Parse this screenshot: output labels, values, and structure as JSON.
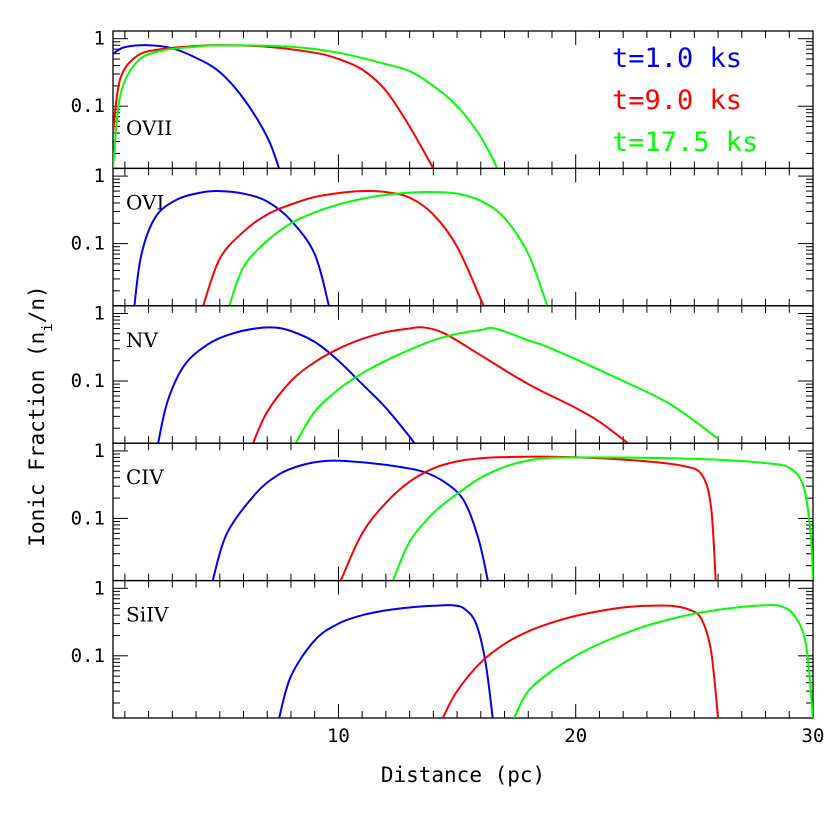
{
  "chart_data": {
    "type": "line",
    "xlabel": "Distance (pc)",
    "ylabel": "Ionic Fraction (n_i/n)",
    "xlim": [
      0.5,
      30
    ],
    "x_ticks": [
      10,
      20,
      30
    ],
    "y_scale": "log",
    "ylim": [
      0.012,
      1.3
    ],
    "y_ticks": [
      {
        "value": 1,
        "label": "1"
      },
      {
        "value": 0.1,
        "label": "0.1"
      }
    ],
    "legend": {
      "placement": "top-right",
      "entries": [
        {
          "label": "t=1.0 ks",
          "color": "#0000ff"
        },
        {
          "label": "t=9.0 ks",
          "color": "#ff0000"
        },
        {
          "label": "t=17.5 ks",
          "color": "#00ff00"
        }
      ]
    },
    "panels": [
      {
        "label": "OVII",
        "series": [
          {
            "name": "t=1.0 ks",
            "color": "#0000ff",
            "points": [
              [
                0.5,
                0.6
              ],
              [
                1,
                0.75
              ],
              [
                2,
                0.8
              ],
              [
                3,
                0.72
              ],
              [
                4,
                0.52
              ],
              [
                5,
                0.32
              ],
              [
                6,
                0.13
              ],
              [
                7,
                0.035
              ],
              [
                7.5,
                0.012
              ]
            ]
          },
          {
            "name": "t=9.0 ks",
            "color": "#ff0000",
            "points": [
              [
                0.5,
                0.04
              ],
              [
                0.8,
                0.25
              ],
              [
                1.5,
                0.55
              ],
              [
                2.5,
                0.7
              ],
              [
                4,
                0.78
              ],
              [
                5,
                0.8
              ],
              [
                7,
                0.76
              ],
              [
                9,
                0.62
              ],
              [
                10,
                0.5
              ],
              [
                11,
                0.35
              ],
              [
                12,
                0.17
              ],
              [
                13,
                0.05
              ],
              [
                14,
                0.012
              ]
            ]
          },
          {
            "name": "t=17.5 ks",
            "color": "#00ff00",
            "points": [
              [
                0.5,
                0.012
              ],
              [
                0.8,
                0.14
              ],
              [
                1.5,
                0.45
              ],
              [
                2.5,
                0.66
              ],
              [
                4,
                0.76
              ],
              [
                5,
                0.8
              ],
              [
                8,
                0.76
              ],
              [
                10,
                0.62
              ],
              [
                12,
                0.42
              ],
              [
                13,
                0.33
              ],
              [
                14,
                0.2
              ],
              [
                15,
                0.1
              ],
              [
                16,
                0.035
              ],
              [
                16.7,
                0.012
              ]
            ]
          }
        ]
      },
      {
        "label": "OVI",
        "series": [
          {
            "name": "t=1.0 ks",
            "color": "#0000ff",
            "points": [
              [
                1.4,
                0.012
              ],
              [
                1.7,
                0.07
              ],
              [
                2.3,
                0.25
              ],
              [
                3.2,
                0.45
              ],
              [
                4.2,
                0.57
              ],
              [
                5,
                0.6
              ],
              [
                6,
                0.55
              ],
              [
                7,
                0.42
              ],
              [
                8,
                0.22
              ],
              [
                9,
                0.07
              ],
              [
                9.6,
                0.012
              ]
            ]
          },
          {
            "name": "t=9.0 ks",
            "color": "#ff0000",
            "points": [
              [
                4.3,
                0.012
              ],
              [
                5,
                0.06
              ],
              [
                6,
                0.15
              ],
              [
                7,
                0.27
              ],
              [
                8,
                0.38
              ],
              [
                9,
                0.49
              ],
              [
                10,
                0.56
              ],
              [
                11,
                0.6
              ],
              [
                12,
                0.58
              ],
              [
                13,
                0.48
              ],
              [
                14,
                0.27
              ],
              [
                15,
                0.09
              ],
              [
                16,
                0.015
              ],
              [
                16.1,
                0.012
              ]
            ]
          },
          {
            "name": "t=17.5 ks",
            "color": "#00ff00",
            "points": [
              [
                5.4,
                0.012
              ],
              [
                6,
                0.045
              ],
              [
                7,
                0.11
              ],
              [
                8,
                0.2
              ],
              [
                9,
                0.29
              ],
              [
                10,
                0.38
              ],
              [
                11,
                0.46
              ],
              [
                12,
                0.53
              ],
              [
                13,
                0.57
              ],
              [
                14,
                0.58
              ],
              [
                15,
                0.55
              ],
              [
                16,
                0.43
              ],
              [
                17,
                0.24
              ],
              [
                18,
                0.07
              ],
              [
                18.8,
                0.012
              ]
            ]
          }
        ]
      },
      {
        "label": "NV",
        "series": [
          {
            "name": "t=1.0 ks",
            "color": "#0000ff",
            "points": [
              [
                2.4,
                0.012
              ],
              [
                2.8,
                0.05
              ],
              [
                3.5,
                0.17
              ],
              [
                4.5,
                0.35
              ],
              [
                5.5,
                0.5
              ],
              [
                6.5,
                0.6
              ],
              [
                7.3,
                0.62
              ],
              [
                8,
                0.55
              ],
              [
                9,
                0.38
              ],
              [
                10,
                0.2
              ],
              [
                11,
                0.09
              ],
              [
                12,
                0.04
              ],
              [
                13,
                0.015
              ],
              [
                13.2,
                0.012
              ]
            ]
          },
          {
            "name": "t=9.0 ks",
            "color": "#ff0000",
            "points": [
              [
                6.4,
                0.012
              ],
              [
                7,
                0.035
              ],
              [
                8,
                0.1
              ],
              [
                9,
                0.19
              ],
              [
                10,
                0.3
              ],
              [
                11,
                0.42
              ],
              [
                12,
                0.53
              ],
              [
                13,
                0.6
              ],
              [
                13.6,
                0.62
              ],
              [
                14.5,
                0.5
              ],
              [
                16,
                0.24
              ],
              [
                18,
                0.09
              ],
              [
                20,
                0.04
              ],
              [
                21,
                0.025
              ],
              [
                22.2,
                0.012
              ]
            ]
          },
          {
            "name": "t=17.5 ks",
            "color": "#00ff00",
            "points": [
              [
                8.2,
                0.012
              ],
              [
                9,
                0.035
              ],
              [
                10,
                0.075
              ],
              [
                11,
                0.13
              ],
              [
                12,
                0.2
              ],
              [
                13,
                0.29
              ],
              [
                14,
                0.4
              ],
              [
                15,
                0.5
              ],
              [
                16,
                0.57
              ],
              [
                16.6,
                0.6
              ],
              [
                18,
                0.4
              ],
              [
                19,
                0.3
              ],
              [
                22,
                0.1
              ],
              [
                24,
                0.045
              ],
              [
                26,
                0.014
              ]
            ]
          }
        ]
      },
      {
        "label": "CIV",
        "series": [
          {
            "name": "t=1.0 ks",
            "color": "#0000ff",
            "points": [
              [
                4.7,
                0.012
              ],
              [
                5.3,
                0.06
              ],
              [
                6.5,
                0.23
              ],
              [
                7.5,
                0.45
              ],
              [
                8.5,
                0.62
              ],
              [
                9.5,
                0.71
              ],
              [
                10.5,
                0.7
              ],
              [
                12,
                0.62
              ],
              [
                13.5,
                0.5
              ],
              [
                14.5,
                0.34
              ],
              [
                15.3,
                0.18
              ],
              [
                15.9,
                0.05
              ],
              [
                16.3,
                0.012
              ]
            ]
          },
          {
            "name": "t=9.0 ks",
            "color": "#ff0000",
            "points": [
              [
                10.1,
                0.012
              ],
              [
                11,
                0.06
              ],
              [
                12,
                0.17
              ],
              [
                13,
                0.35
              ],
              [
                14,
                0.55
              ],
              [
                15,
                0.7
              ],
              [
                16,
                0.78
              ],
              [
                17,
                0.81
              ],
              [
                19,
                0.82
              ],
              [
                21,
                0.78
              ],
              [
                23,
                0.7
              ],
              [
                24.5,
                0.6
              ],
              [
                25.3,
                0.45
              ],
              [
                25.7,
                0.15
              ],
              [
                25.9,
                0.012
              ]
            ]
          },
          {
            "name": "t=17.5 ks",
            "color": "#00ff00",
            "points": [
              [
                12.3,
                0.012
              ],
              [
                13,
                0.045
              ],
              [
                14,
                0.12
              ],
              [
                15,
                0.23
              ],
              [
                16,
                0.4
              ],
              [
                17,
                0.58
              ],
              [
                18,
                0.72
              ],
              [
                19,
                0.79
              ],
              [
                21,
                0.8
              ],
              [
                24,
                0.78
              ],
              [
                26,
                0.74
              ],
              [
                28,
                0.66
              ],
              [
                29,
                0.56
              ],
              [
                29.6,
                0.3
              ],
              [
                29.9,
                0.06
              ],
              [
                30,
                0.012
              ]
            ]
          }
        ]
      },
      {
        "label": "SiIV",
        "series": [
          {
            "name": "t=1.0 ks",
            "color": "#0000ff",
            "points": [
              [
                7.5,
                0.012
              ],
              [
                8,
                0.05
              ],
              [
                9,
                0.17
              ],
              [
                10,
                0.3
              ],
              [
                11,
                0.4
              ],
              [
                12,
                0.47
              ],
              [
                13,
                0.52
              ],
              [
                14,
                0.55
              ],
              [
                14.8,
                0.56
              ],
              [
                15.3,
                0.5
              ],
              [
                15.8,
                0.3
              ],
              [
                16.2,
                0.08
              ],
              [
                16.5,
                0.012
              ]
            ]
          },
          {
            "name": "t=9.0 ks",
            "color": "#ff0000",
            "points": [
              [
                14.4,
                0.012
              ],
              [
                15,
                0.03
              ],
              [
                16,
                0.08
              ],
              [
                17,
                0.15
              ],
              [
                18,
                0.23
              ],
              [
                19,
                0.31
              ],
              [
                20,
                0.39
              ],
              [
                21,
                0.46
              ],
              [
                22,
                0.52
              ],
              [
                23,
                0.55
              ],
              [
                24,
                0.55
              ],
              [
                24.8,
                0.48
              ],
              [
                25.3,
                0.35
              ],
              [
                25.7,
                0.12
              ],
              [
                26,
                0.012
              ]
            ]
          },
          {
            "name": "t=17.5 ks",
            "color": "#00ff00",
            "points": [
              [
                17.4,
                0.012
              ],
              [
                18,
                0.03
              ],
              [
                19,
                0.06
              ],
              [
                20,
                0.1
              ],
              [
                21,
                0.15
              ],
              [
                22,
                0.21
              ],
              [
                23,
                0.28
              ],
              [
                24,
                0.35
              ],
              [
                25,
                0.42
              ],
              [
                26,
                0.48
              ],
              [
                27,
                0.53
              ],
              [
                28,
                0.56
              ],
              [
                28.6,
                0.55
              ],
              [
                29.2,
                0.4
              ],
              [
                29.7,
                0.15
              ],
              [
                30,
                0.012
              ]
            ]
          }
        ]
      }
    ]
  }
}
